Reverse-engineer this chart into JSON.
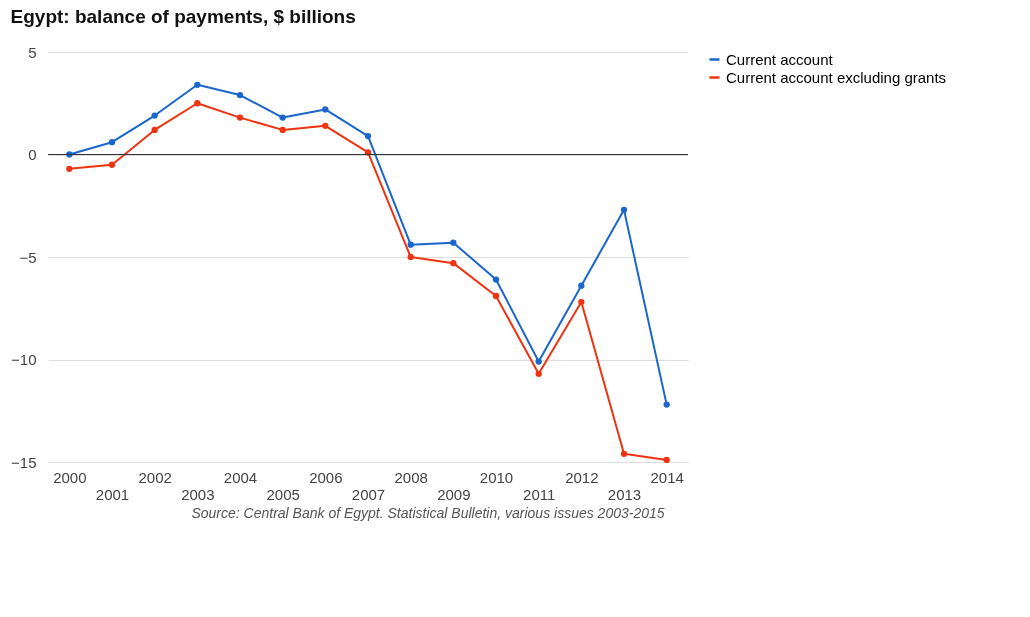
{
  "chart_data": {
    "type": "line",
    "title": "Egypt: balance of payments, $ billions",
    "categories": [
      "2000",
      "2001",
      "2002",
      "2003",
      "2004",
      "2005",
      "2006",
      "2007",
      "2008",
      "2009",
      "2010",
      "2011",
      "2012",
      "2013",
      "2014"
    ],
    "series": [
      {
        "name": "Current account",
        "color": "#1a66cc",
        "values": [
          0.0,
          0.6,
          1.9,
          3.4,
          2.9,
          1.8,
          2.2,
          0.9,
          -4.4,
          -4.3,
          -6.1,
          -10.1,
          -6.4,
          -2.7,
          -12.2
        ]
      },
      {
        "name": "Current account excluding grants",
        "color": "#ee3311",
        "values": [
          -0.7,
          -0.5,
          1.2,
          2.5,
          1.8,
          1.2,
          1.4,
          0.1,
          -5.0,
          -5.3,
          -6.9,
          -10.7,
          -7.2,
          -14.6,
          -14.9
        ]
      }
    ],
    "ylim": [
      -15,
      5
    ],
    "yticks": [
      -15,
      -10,
      -5,
      0,
      5
    ],
    "grid": "y",
    "legend": "top right",
    "marker": "circle",
    "line_style": "solid",
    "ref_lines": [
      {
        "axis": "y",
        "value": 0,
        "color": "#333333"
      }
    ],
    "annotations": [
      "Source: Central Bank of Egypt. Statistical Bulletin, various issues 2003-2015"
    ]
  }
}
